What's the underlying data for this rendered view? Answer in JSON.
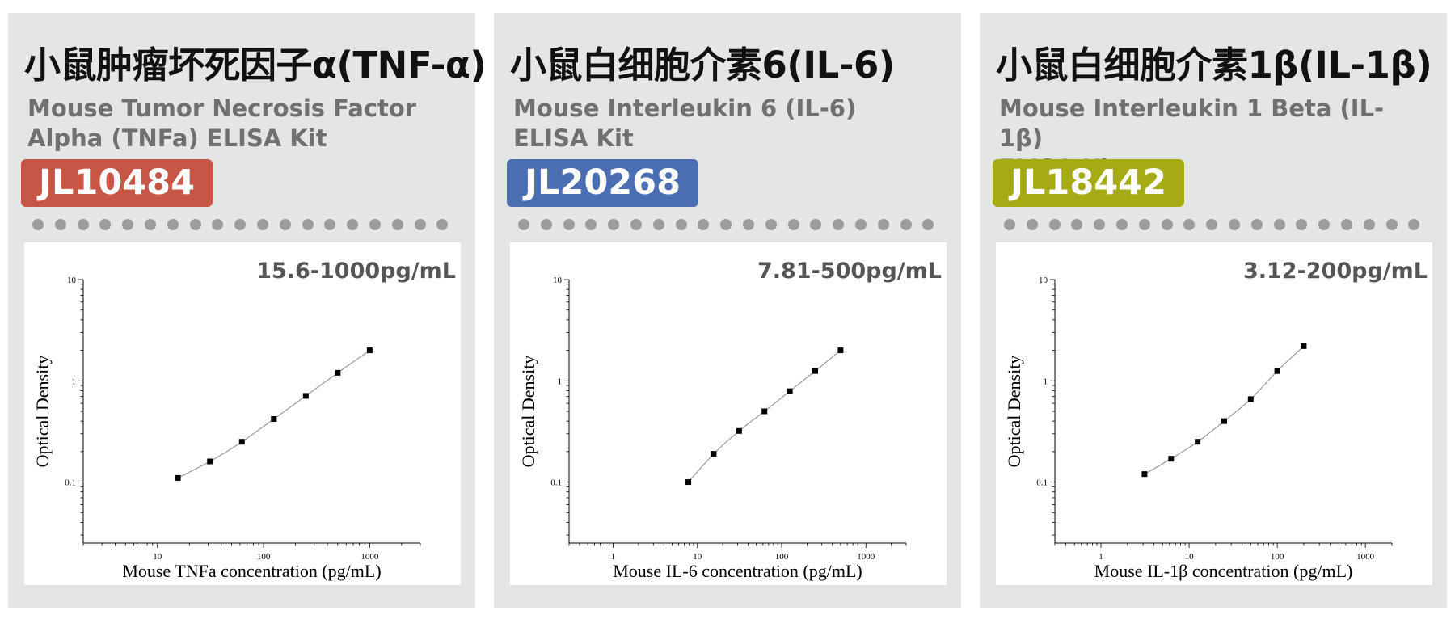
{
  "panels": [
    {
      "title_cn": "小鼠肿瘤坏死因子α(TNF-α)",
      "title_en_line1": "Mouse Tumor Necrosis Factor",
      "title_en_line2": "Alpha (TNFa) ELISA Kit",
      "catalog": "JL10484",
      "badge_color": "#c85646",
      "range": "15.6-1000pg/mL"
    },
    {
      "title_cn": "小鼠白细胞介素6(IL-6)",
      "title_en_line1": "Mouse Interleukin 6 (IL-6)",
      "title_en_line2": "ELISA Kit",
      "catalog": "JL20268",
      "badge_color": "#4b6eb3",
      "range": "7.81-500pg/mL"
    },
    {
      "title_cn": "小鼠白细胞介素1β(IL-1β)",
      "title_en_line1": "Mouse Interleukin 1 Beta (IL-1β)",
      "title_en_line2": "ELISA Kit",
      "catalog": "JL18442",
      "badge_color": "#a6ab15",
      "range": "3.12-200pg/mL"
    }
  ],
  "chart_data": [
    {
      "type": "scatter",
      "xlabel": "Mouse TNFa concentration (pg/mL)",
      "ylabel": "Optical Density",
      "x_scale": "log",
      "y_scale": "log",
      "xlim": [
        2,
        3000
      ],
      "ylim": [
        0.025,
        10
      ],
      "x_ticks": [
        "10",
        "100",
        "1000"
      ],
      "y_ticks": [
        "0.1",
        "1",
        "10"
      ],
      "x": [
        15.6,
        31.25,
        62.5,
        125,
        250,
        500,
        1000
      ],
      "y": [
        0.11,
        0.16,
        0.25,
        0.42,
        0.71,
        1.2,
        2.0
      ],
      "fit_line": true
    },
    {
      "type": "scatter",
      "xlabel": "Mouse IL-6 concentration (pg/mL)",
      "ylabel": "Optical Density",
      "x_scale": "log",
      "y_scale": "log",
      "xlim": [
        0.3,
        3000
      ],
      "ylim": [
        0.025,
        10
      ],
      "x_ticks": [
        "1",
        "10",
        "100",
        "1000"
      ],
      "y_ticks": [
        "0.1",
        "1",
        "10"
      ],
      "x": [
        7.81,
        15.6,
        31.25,
        62.5,
        125,
        250,
        500
      ],
      "y": [
        0.1,
        0.19,
        0.32,
        0.5,
        0.79,
        1.25,
        2.0
      ],
      "fit_line": true
    },
    {
      "type": "scatter",
      "xlabel": "Mouse IL-1β concentration (pg/mL)",
      "ylabel": "Optical Density",
      "x_scale": "log",
      "y_scale": "log",
      "xlim": [
        0.3,
        2000
      ],
      "ylim": [
        0.025,
        10
      ],
      "x_ticks": [
        "1",
        "10",
        "100",
        "1000"
      ],
      "y_ticks": [
        "0.1",
        "1",
        "10"
      ],
      "x": [
        3.12,
        6.25,
        12.5,
        25,
        50,
        100,
        200
      ],
      "y": [
        0.12,
        0.17,
        0.25,
        0.4,
        0.66,
        1.25,
        2.2
      ],
      "fit_line": true
    }
  ]
}
